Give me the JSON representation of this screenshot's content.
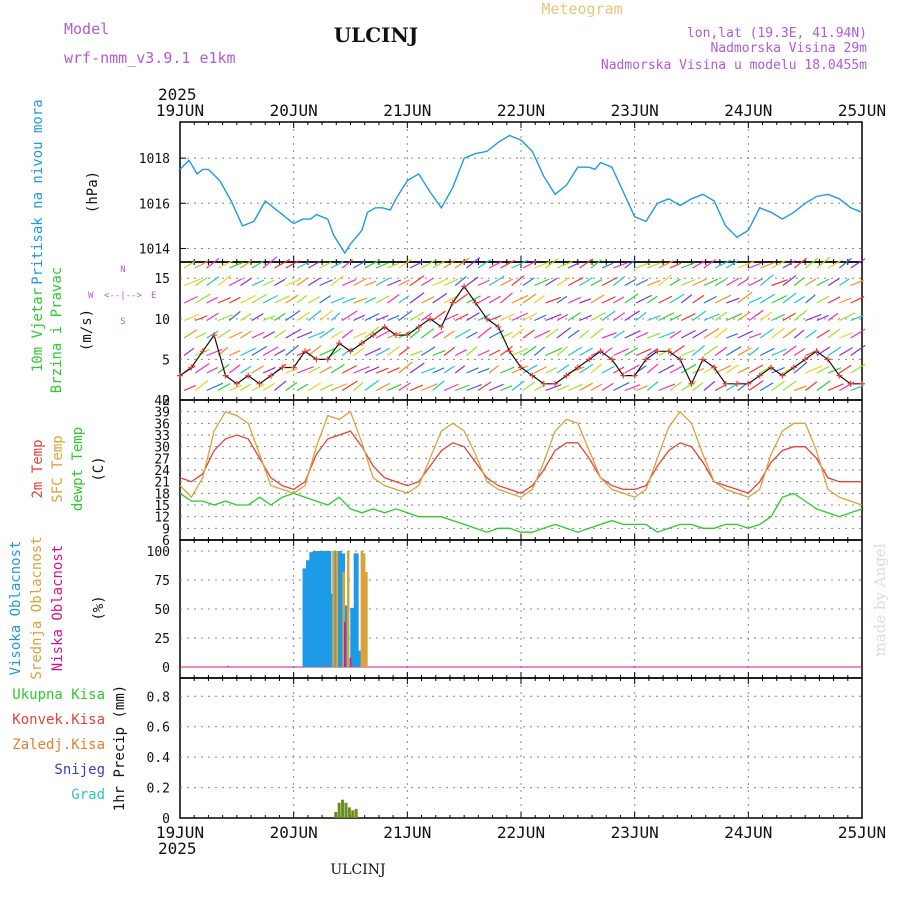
{
  "header": {
    "title": "ULCINJ",
    "model_label": "Model",
    "model_name": "wrf-nmm_v3.9.1 e1km",
    "meteogram_label": "Meteogram",
    "lonlat": "lon,lat (19.3E, 41.94N)",
    "elevation": "Nadmorska Visina 29m",
    "model_elevation": "Nadmorska Visina u modelu 18.0455m",
    "footer": "ULCINJ",
    "credit": "made by Angel"
  },
  "time_axis": {
    "year": "2025",
    "labels": [
      "19JUN",
      "20JUN",
      "21JUN",
      "22JUN",
      "23JUN",
      "24JUN",
      "25JUN"
    ]
  },
  "panels": {
    "pressure": {
      "label": "Pritisak na nivou mora",
      "unit": "(hPa)",
      "ticks": [
        "1014",
        "1016",
        "1018"
      ],
      "color": "#1e9be6"
    },
    "wind": {
      "label1": "10m Vjetar",
      "label2": "Brzina i Pravac",
      "unit": "(m/s)",
      "ticks": [
        "0",
        "5",
        "10",
        "15"
      ],
      "compass": {
        "n": "N",
        "s": "S",
        "w": "W",
        "e": "E",
        "arrows": "<--|-->"
      }
    },
    "temp": {
      "label1": "2m Temp",
      "label2": "SFC Temp",
      "label3": "dewpt Temp",
      "unit": "(C)",
      "ticks": [
        "6",
        "9",
        "12",
        "15",
        "18",
        "21",
        "24",
        "27",
        "30",
        "33",
        "36",
        "39",
        "42"
      ]
    },
    "cloud": {
      "label1": "Visoka Oblacnost",
      "label2": "Srednja Oblacnost",
      "label3": "Niska Oblacnost",
      "unit": "(%)",
      "ticks": [
        "0",
        "25",
        "50",
        "75",
        "100"
      ]
    },
    "precip": {
      "labels": [
        "Ukupna Kisa",
        "Konvek.Kisa",
        "Zaledj.Kisa",
        "Snijeg",
        "Grad"
      ],
      "unit": "1hr Precip (mm)",
      "ticks": [
        "0",
        "0.2",
        "0.4",
        "0.6",
        "0.8"
      ]
    }
  },
  "colors": {
    "pressure": "#1e9be6",
    "temp2m": "#e8413a",
    "sfc": "#dba23a",
    "dew": "#2bcc2b",
    "high": "#1e9be6",
    "mid": "#dba23a",
    "low": "#d4148c",
    "total": "#2bcc2b",
    "conv": "#e8413a",
    "frz": "#ef7c2b",
    "snow": "#3b3bd6",
    "hail": "#29c7c0",
    "credit": "#d4e4d4"
  },
  "chart_data": [
    {
      "type": "line",
      "title": "Pritisak na nivou mora",
      "ylabel": "(hPa)",
      "ylim": [
        1013.4,
        1019.6
      ],
      "x_days": [
        0,
        0.08,
        0.15,
        0.2,
        0.25,
        0.35,
        0.45,
        0.55,
        0.65,
        0.75,
        0.85,
        0.95,
        1.0,
        1.08,
        1.15,
        1.2,
        1.3,
        1.35,
        1.45,
        1.5,
        1.6,
        1.65,
        1.72,
        1.78,
        1.85,
        1.9,
        2.0,
        2.1,
        2.2,
        2.3,
        2.4,
        2.5,
        2.6,
        2.7,
        2.8,
        2.9,
        3.0,
        3.1,
        3.2,
        3.3,
        3.4,
        3.5,
        3.6,
        3.65,
        3.7,
        3.8,
        3.9,
        4.0,
        4.1,
        4.2,
        4.3,
        4.4,
        4.5,
        4.6,
        4.7,
        4.8,
        4.9,
        5.0,
        5.1,
        5.2,
        5.3,
        5.4,
        5.5,
        5.6,
        5.7,
        5.8,
        5.9,
        6.0
      ],
      "values": [
        1017.5,
        1017.9,
        1017.3,
        1017.5,
        1017.5,
        1017.0,
        1016.1,
        1015.0,
        1015.2,
        1016.1,
        1015.7,
        1015.3,
        1015.1,
        1015.3,
        1015.3,
        1015.5,
        1015.3,
        1014.6,
        1013.8,
        1014.2,
        1014.8,
        1015.6,
        1015.8,
        1015.8,
        1015.7,
        1016.2,
        1017.0,
        1017.3,
        1016.5,
        1015.8,
        1016.7,
        1018.0,
        1018.2,
        1018.3,
        1018.7,
        1019.0,
        1018.8,
        1018.3,
        1017.2,
        1016.4,
        1016.8,
        1017.6,
        1017.6,
        1017.5,
        1017.8,
        1017.6,
        1016.5,
        1015.4,
        1015.2,
        1016.0,
        1016.2,
        1015.9,
        1016.2,
        1016.4,
        1016.1,
        1015.0,
        1014.5,
        1014.8,
        1015.8,
        1015.6,
        1015.3,
        1015.6,
        1016.0,
        1016.3,
        1016.4,
        1016.2,
        1015.8,
        1015.6
      ]
    },
    {
      "type": "line",
      "title": "10m Vjetar Brzina i Pravac",
      "ylabel": "(m/s)",
      "ylim": [
        0,
        17
      ],
      "series": [
        {
          "name": "Brzina",
          "x_days": [
            0,
            0.1,
            0.2,
            0.3,
            0.4,
            0.5,
            0.6,
            0.7,
            0.8,
            0.9,
            1.0,
            1.1,
            1.2,
            1.3,
            1.4,
            1.5,
            1.6,
            1.7,
            1.8,
            1.9,
            2.0,
            2.1,
            2.2,
            2.3,
            2.4,
            2.5,
            2.6,
            2.7,
            2.8,
            2.9,
            3.0,
            3.1,
            3.2,
            3.3,
            3.4,
            3.5,
            3.6,
            3.7,
            3.8,
            3.9,
            4.0,
            4.1,
            4.2,
            4.3,
            4.4,
            4.5,
            4.6,
            4.7,
            4.8,
            4.9,
            5.0,
            5.1,
            5.2,
            5.3,
            5.4,
            5.5,
            5.6,
            5.7,
            5.8,
            5.9,
            6.0
          ],
          "values": [
            3,
            4,
            6,
            8,
            3,
            2,
            3,
            2,
            3,
            4,
            4,
            6,
            5,
            5,
            7,
            6,
            7,
            8,
            9,
            8,
            8,
            9,
            10,
            9,
            12,
            14,
            12,
            10,
            9,
            6,
            4,
            3,
            2,
            2,
            3,
            4,
            5,
            6,
            5,
            3,
            3,
            5,
            6,
            6,
            5,
            2,
            5,
            4,
            2,
            2,
            2,
            3,
            4,
            3,
            4,
            5,
            6,
            5,
            3,
            2,
            2
          ]
        }
      ]
    },
    {
      "type": "line",
      "title": "Temperatura",
      "ylabel": "(C)",
      "ylim": [
        6,
        42
      ],
      "x_days": [
        0,
        0.1,
        0.2,
        0.3,
        0.4,
        0.5,
        0.6,
        0.7,
        0.8,
        0.9,
        1.0,
        1.1,
        1.2,
        1.3,
        1.4,
        1.5,
        1.6,
        1.7,
        1.8,
        1.9,
        2.0,
        2.1,
        2.2,
        2.3,
        2.4,
        2.5,
        2.6,
        2.7,
        2.8,
        2.9,
        3.0,
        3.1,
        3.2,
        3.3,
        3.4,
        3.5,
        3.6,
        3.7,
        3.8,
        3.9,
        4.0,
        4.1,
        4.2,
        4.3,
        4.4,
        4.5,
        4.6,
        4.7,
        4.8,
        4.9,
        5.0,
        5.1,
        5.2,
        5.3,
        5.4,
        5.5,
        5.6,
        5.7,
        5.8,
        5.9,
        6.0
      ],
      "series": [
        {
          "name": "2m Temp",
          "values": [
            22,
            21,
            23,
            29,
            32,
            33,
            32,
            27,
            22,
            20,
            19,
            21,
            28,
            32,
            33,
            34,
            30,
            25,
            22,
            21,
            20,
            21,
            25,
            29,
            31,
            30,
            26,
            22,
            20,
            19,
            18,
            20,
            24,
            29,
            31,
            31,
            27,
            22,
            20,
            19,
            19,
            20,
            25,
            29,
            31,
            30,
            26,
            21,
            20,
            19,
            18,
            21,
            26,
            29,
            30,
            30,
            27,
            22,
            21,
            21,
            21
          ]
        },
        {
          "name": "SFC Temp",
          "values": [
            20,
            17,
            22,
            34,
            39,
            38,
            36,
            28,
            20,
            19,
            18,
            20,
            30,
            38,
            37,
            39,
            31,
            22,
            20,
            19,
            18,
            20,
            27,
            34,
            36,
            34,
            28,
            21,
            19,
            18,
            17,
            19,
            26,
            34,
            37,
            36,
            29,
            22,
            19,
            18,
            17,
            19,
            27,
            35,
            39,
            36,
            28,
            21,
            19,
            18,
            17,
            19,
            28,
            34,
            36,
            36,
            29,
            19,
            17,
            16,
            15
          ]
        },
        {
          "name": "dewpt Temp",
          "values": [
            18,
            16,
            16,
            15,
            16,
            15,
            15,
            17,
            15,
            17,
            18,
            17,
            16,
            15,
            17,
            14,
            13,
            14,
            13,
            14,
            13,
            12,
            12,
            12,
            11,
            10,
            9,
            8,
            9,
            9,
            8,
            8,
            9,
            10,
            9,
            8,
            9,
            10,
            11,
            10,
            10,
            10,
            8,
            9,
            10,
            10,
            9,
            9,
            10,
            10,
            9,
            10,
            12,
            17,
            18,
            16,
            14,
            13,
            12,
            13,
            14
          ]
        }
      ]
    },
    {
      "type": "bar",
      "title": "Oblacnost",
      "ylabel": "(%)",
      "ylim": [
        0,
        100
      ],
      "series": [
        {
          "name": "Visoka Oblacnost",
          "x_days": [
            1.1,
            1.13,
            1.16,
            1.19,
            1.22,
            1.25,
            1.28,
            1.31,
            1.34,
            1.37,
            1.4,
            1.43,
            1.46,
            1.52,
            1.55,
            1.58
          ],
          "values": [
            85,
            92,
            99,
            100,
            100,
            100,
            100,
            100,
            63,
            100,
            100,
            98,
            53,
            51,
            98,
            14
          ]
        },
        {
          "name": "Srednja Oblacnost",
          "x_days": [
            1.35,
            1.38,
            1.44,
            1.48,
            1.6,
            1.62,
            1.64
          ],
          "values": [
            100,
            100,
            82,
            100,
            100,
            98,
            82
          ]
        },
        {
          "name": "Niska Oblacnost",
          "x_days": [
            0.42,
            1.45,
            1.5
          ],
          "values": [
            1,
            39,
            8
          ]
        }
      ]
    },
    {
      "type": "bar",
      "title": "1hr Precip",
      "ylabel": "(mm)",
      "ylim": [
        0,
        0.92
      ],
      "series": [
        {
          "name": "Ukupna Kisa",
          "x_days": [
            1.37,
            1.4,
            1.43,
            1.46,
            1.49,
            1.52,
            1.55
          ],
          "values": [
            0.04,
            0.1,
            0.12,
            0.1,
            0.07,
            0.05,
            0.06
          ]
        }
      ]
    }
  ]
}
